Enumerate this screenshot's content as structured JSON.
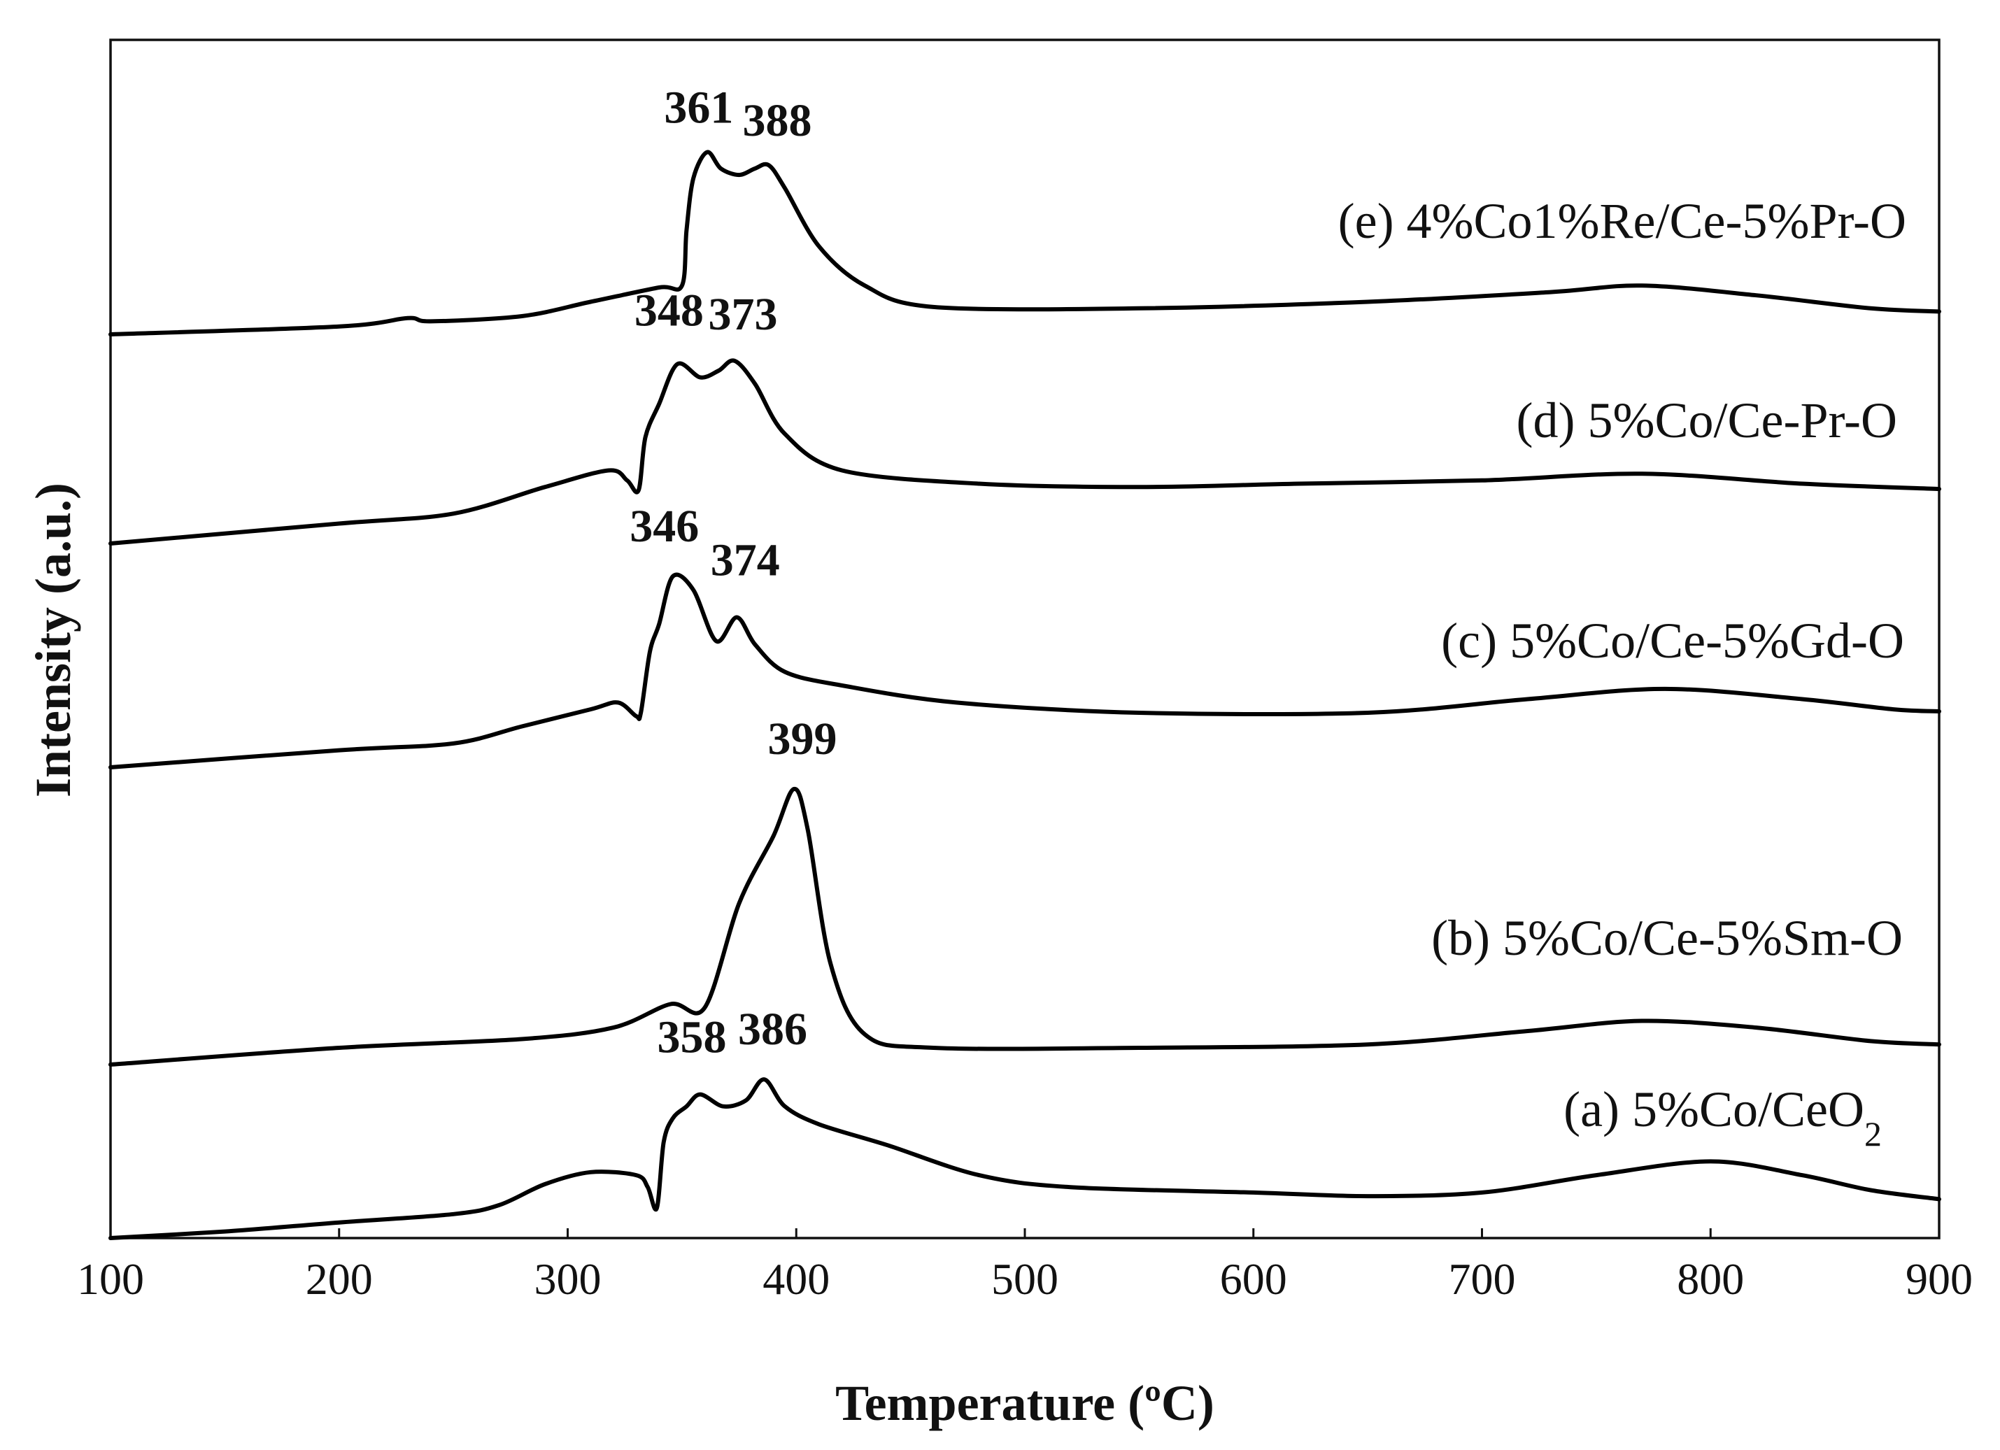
{
  "chart_data": {
    "type": "line",
    "title": "",
    "xlabel": "Temperature (ºC)",
    "ylabel": "Intensity (a.u.)",
    "xlim": [
      100,
      900
    ],
    "xticks": [
      100,
      200,
      300,
      400,
      500,
      600,
      700,
      800,
      900
    ],
    "yticks_shown": false,
    "grid": false,
    "series": [
      {
        "name": "(a) 5%Co/CeO",
        "name_subscript": "2",
        "peaks": [
          "358",
          "386"
        ],
        "points": [
          [
            100,
            0.0
          ],
          [
            150,
            0.11
          ],
          [
            200,
            0.26
          ],
          [
            250,
            0.4
          ],
          [
            270,
            0.55
          ],
          [
            290,
            0.9
          ],
          [
            310,
            1.1
          ],
          [
            330,
            1.05
          ],
          [
            335,
            0.85
          ],
          [
            339,
            0.5
          ],
          [
            342,
            1.6
          ],
          [
            346,
            2.0
          ],
          [
            352,
            2.2
          ],
          [
            358,
            2.4
          ],
          [
            368,
            2.2
          ],
          [
            378,
            2.3
          ],
          [
            386,
            2.65
          ],
          [
            395,
            2.2
          ],
          [
            410,
            1.9
          ],
          [
            440,
            1.55
          ],
          [
            480,
            1.05
          ],
          [
            520,
            0.85
          ],
          [
            600,
            0.76
          ],
          [
            650,
            0.7
          ],
          [
            700,
            0.76
          ],
          [
            750,
            1.05
          ],
          [
            800,
            1.28
          ],
          [
            840,
            1.05
          ],
          [
            870,
            0.8
          ],
          [
            900,
            0.65
          ]
        ]
      },
      {
        "name": "(b) 5%Co/Ce-5%Sm-O",
        "name_subscript": "",
        "peaks": [
          "399"
        ],
        "points": [
          [
            100,
            0.0
          ],
          [
            200,
            0.25
          ],
          [
            280,
            0.38
          ],
          [
            320,
            0.55
          ],
          [
            345,
            0.9
          ],
          [
            360,
            0.85
          ],
          [
            375,
            2.4
          ],
          [
            390,
            3.4
          ],
          [
            399,
            4.1
          ],
          [
            405,
            3.5
          ],
          [
            415,
            1.5
          ],
          [
            430,
            0.45
          ],
          [
            460,
            0.25
          ],
          [
            550,
            0.25
          ],
          [
            650,
            0.3
          ],
          [
            720,
            0.5
          ],
          [
            770,
            0.65
          ],
          [
            820,
            0.55
          ],
          [
            870,
            0.35
          ],
          [
            900,
            0.3
          ]
        ]
      },
      {
        "name": "(c) 5%Co/Ce-5%Gd-O",
        "name_subscript": "",
        "peaks": [
          "346",
          "374"
        ],
        "points": [
          [
            100,
            0.0
          ],
          [
            200,
            0.25
          ],
          [
            250,
            0.35
          ],
          [
            280,
            0.6
          ],
          [
            310,
            0.85
          ],
          [
            322,
            0.95
          ],
          [
            330,
            0.75
          ],
          [
            332,
            0.8
          ],
          [
            336,
            1.7
          ],
          [
            340,
            2.1
          ],
          [
            346,
            2.8
          ],
          [
            355,
            2.6
          ],
          [
            365,
            1.85
          ],
          [
            374,
            2.2
          ],
          [
            382,
            1.8
          ],
          [
            395,
            1.4
          ],
          [
            420,
            1.2
          ],
          [
            470,
            0.95
          ],
          [
            550,
            0.8
          ],
          [
            650,
            0.8
          ],
          [
            720,
            1.0
          ],
          [
            780,
            1.15
          ],
          [
            840,
            1.0
          ],
          [
            880,
            0.85
          ],
          [
            900,
            0.82
          ]
        ]
      },
      {
        "name": "(d) 5%Co/Ce-Pr-O",
        "name_subscript": "",
        "peaks": [
          "348",
          "373"
        ],
        "points": [
          [
            100,
            0.0
          ],
          [
            200,
            0.3
          ],
          [
            250,
            0.45
          ],
          [
            290,
            0.85
          ],
          [
            318,
            1.1
          ],
          [
            326,
            0.95
          ],
          [
            331,
            0.8
          ],
          [
            334,
            1.6
          ],
          [
            340,
            2.1
          ],
          [
            348,
            2.7
          ],
          [
            358,
            2.5
          ],
          [
            366,
            2.6
          ],
          [
            373,
            2.75
          ],
          [
            382,
            2.4
          ],
          [
            395,
            1.65
          ],
          [
            420,
            1.1
          ],
          [
            480,
            0.9
          ],
          [
            550,
            0.85
          ],
          [
            620,
            0.9
          ],
          [
            700,
            0.95
          ],
          [
            770,
            1.05
          ],
          [
            840,
            0.9
          ],
          [
            900,
            0.82
          ]
        ]
      },
      {
        "name": "(e) 4%Co1%Re/Ce-5%Pr-O",
        "name_subscript": "",
        "peaks": [
          "361",
          "388"
        ],
        "points": [
          [
            100,
            0.0
          ],
          [
            200,
            0.12
          ],
          [
            230,
            0.25
          ],
          [
            240,
            0.2
          ],
          [
            280,
            0.28
          ],
          [
            310,
            0.5
          ],
          [
            340,
            0.72
          ],
          [
            350,
            0.75
          ],
          [
            352,
            1.6
          ],
          [
            355,
            2.4
          ],
          [
            361,
            2.8
          ],
          [
            367,
            2.55
          ],
          [
            375,
            2.45
          ],
          [
            382,
            2.55
          ],
          [
            388,
            2.6
          ],
          [
            395,
            2.25
          ],
          [
            410,
            1.35
          ],
          [
            430,
            0.75
          ],
          [
            460,
            0.42
          ],
          [
            550,
            0.4
          ],
          [
            650,
            0.5
          ],
          [
            730,
            0.65
          ],
          [
            770,
            0.75
          ],
          [
            820,
            0.6
          ],
          [
            870,
            0.4
          ],
          [
            900,
            0.35
          ]
        ]
      }
    ]
  }
}
